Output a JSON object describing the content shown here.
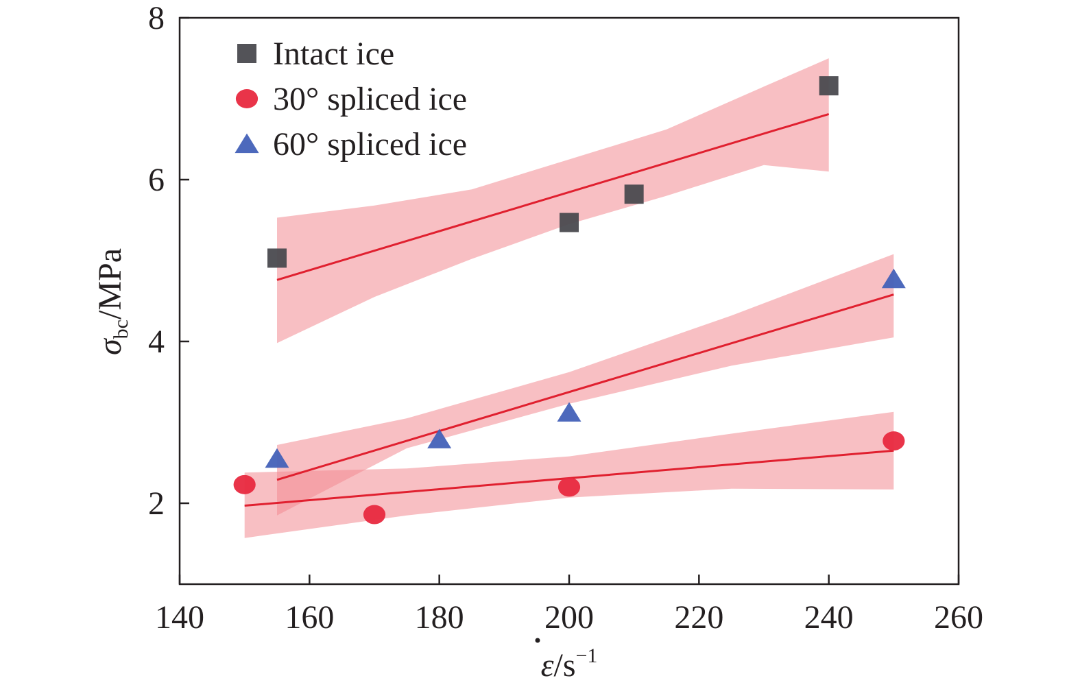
{
  "chart_data": {
    "type": "scatter",
    "title": "",
    "xlabel": {
      "symbol": "ε",
      "suffix": "/s",
      "superscript": "−1"
    },
    "ylabel": {
      "symbol": "σ",
      "subscript": "bc",
      "suffix": "/MPa"
    },
    "xlim": [
      140,
      260
    ],
    "ylim": [
      1,
      8
    ],
    "xticks": [
      140,
      160,
      180,
      200,
      220,
      240,
      260
    ],
    "yticks": [
      2,
      4,
      6,
      8
    ],
    "grid": false,
    "legend_position": "top-left",
    "series": [
      {
        "name": "Intact ice",
        "marker": "square",
        "color": "#4a4a4f",
        "points": [
          {
            "x": 155,
            "y": 5.03
          },
          {
            "x": 200,
            "y": 5.47
          },
          {
            "x": 210,
            "y": 5.82
          },
          {
            "x": 240,
            "y": 7.16
          }
        ],
        "fit": {
          "x": [
            155,
            240
          ],
          "y": [
            4.76,
            6.81
          ]
        },
        "band": {
          "x": [
            155,
            170,
            185,
            200,
            215,
            230,
            240
          ],
          "upper": [
            5.53,
            5.68,
            5.88,
            6.25,
            6.62,
            7.15,
            7.5
          ],
          "lower": [
            3.98,
            4.55,
            5.02,
            5.45,
            5.8,
            6.18,
            6.1
          ]
        }
      },
      {
        "name": "30° spliced ice",
        "marker": "circle",
        "color": "#e8293f",
        "points": [
          {
            "x": 150,
            "y": 2.23
          },
          {
            "x": 170,
            "y": 1.86
          },
          {
            "x": 200,
            "y": 2.2
          },
          {
            "x": 250,
            "y": 2.77
          }
        ],
        "fit": {
          "x": [
            150,
            250
          ],
          "y": [
            1.97,
            2.65
          ]
        },
        "band": {
          "x": [
            150,
            175,
            200,
            225,
            250
          ],
          "upper": [
            2.38,
            2.43,
            2.58,
            2.86,
            3.13
          ],
          "lower": [
            1.57,
            1.85,
            2.07,
            2.18,
            2.17
          ]
        }
      },
      {
        "name": "60° spliced ice",
        "marker": "triangle",
        "color": "#4361b8",
        "points": [
          {
            "x": 155,
            "y": 2.55
          },
          {
            "x": 180,
            "y": 2.79
          },
          {
            "x": 200,
            "y": 3.12
          },
          {
            "x": 250,
            "y": 4.77
          }
        ],
        "fit": {
          "x": [
            155,
            250
          ],
          "y": [
            2.29,
            4.58
          ]
        },
        "band": {
          "x": [
            155,
            175,
            200,
            225,
            250
          ],
          "upper": [
            2.72,
            3.05,
            3.62,
            4.32,
            5.08
          ],
          "lower": [
            1.85,
            2.68,
            3.23,
            3.7,
            4.05
          ]
        }
      }
    ]
  },
  "colors": {
    "band": "#f28a92",
    "fit_line": "#e0202f",
    "axis": "#231f20"
  }
}
